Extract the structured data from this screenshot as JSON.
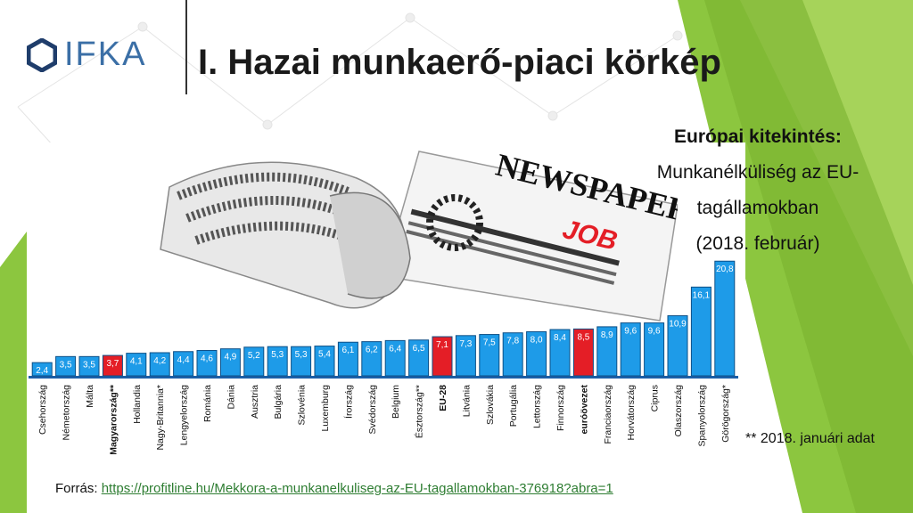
{
  "logo": {
    "text": "IFKA",
    "icon": "hexagon-logo-icon"
  },
  "title": "I. Hazai munkaerő-piaci körkép",
  "side_text": {
    "heading": "Európai kitekintés:",
    "line1": "Munkanélküliség az EU-",
    "line2": "tagállamokban",
    "line3": "(2018. február)"
  },
  "footnote": "** 2018. januári adat",
  "source": {
    "label": "Forrás: ",
    "url": "https://profitline.hu/Mekkora-a-munkanelkuliseg-az-EU-tagallamokban-376918?abra=1"
  },
  "illustration": {
    "icon": "newspaper-icon",
    "headline": "NEWSPAPER",
    "sub": "JOB"
  },
  "colors": {
    "bar": "#1e9be8",
    "bar_highlight": "#e41e26",
    "accent_green": "#8cc63f",
    "title": "#1a1a1a"
  },
  "chart_data": {
    "type": "bar",
    "categories": [
      "Csehország",
      "Németország",
      "Málta",
      "Magyarország**",
      "Hollandia",
      "Nagy-Britannia*",
      "Lengyelország",
      "Románia",
      "Dánia",
      "Ausztria",
      "Bulgária",
      "Szlovénia",
      "Luxemburg",
      "Írország",
      "Svédország",
      "Belgium",
      "Észtország**",
      "EU-28",
      "Litvánia",
      "Szlovákia",
      "Portugália",
      "Lettország",
      "Finnország",
      "euróövezet",
      "Franciaország",
      "Horvátország",
      "Ciprus",
      "Olaszország",
      "Spanyolország",
      "Görögország*"
    ],
    "values": [
      2.4,
      3.5,
      3.5,
      3.7,
      4.1,
      4.2,
      4.4,
      4.6,
      4.9,
      5.2,
      5.3,
      5.3,
      5.4,
      6.1,
      6.2,
      6.4,
      6.5,
      7.1,
      7.3,
      7.5,
      7.8,
      8.0,
      8.4,
      8.5,
      8.9,
      9.6,
      9.6,
      10.9,
      16.1,
      20.8
    ],
    "value_labels": [
      "2,4",
      "3,5",
      "3,5",
      "3,7",
      "4,1",
      "4,2",
      "4,4",
      "4,6",
      "4,9",
      "5,2",
      "5,3",
      "5,3",
      "5,4",
      "6,1",
      "6,2",
      "6,4",
      "6,5",
      "7,1",
      "7,3",
      "7,5",
      "7,8",
      "8,0",
      "8,4",
      "8,5",
      "8,9",
      "9,6",
      "9,6",
      "10,9",
      "16,1",
      "20,8"
    ],
    "highlighted": [
      "Magyarország**",
      "EU-28",
      "euróövezet"
    ],
    "bold_labels": [
      "Magyarország**",
      "EU-28",
      "euróövezet"
    ],
    "ylim": [
      0,
      21
    ],
    "grid": false,
    "legend": "none"
  }
}
